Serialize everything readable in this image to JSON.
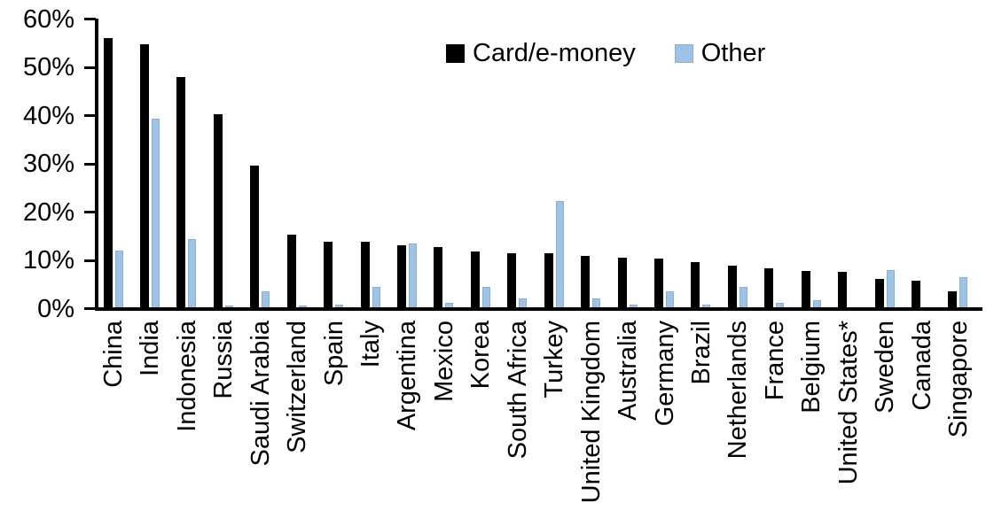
{
  "chart_data": {
    "type": "bar",
    "title": "",
    "xlabel": "",
    "ylabel": "",
    "grid": false,
    "legend_position": "top-center",
    "categories": [
      "China",
      "India",
      "Indonesia",
      "Russia",
      "Saudi Arabia",
      "Switzerland",
      "Spain",
      "Italy",
      "Argentina",
      "Mexico",
      "Korea",
      "South Africa",
      "Turkey",
      "United Kingdom",
      "Australia",
      "Germany",
      "Brazil",
      "Netherlands",
      "France",
      "Belgium",
      "United States*",
      "Sweden",
      "Canada",
      "Singapore"
    ],
    "series": [
      {
        "name": "Card/e-money",
        "color": "#000000",
        "values": [
          56.3,
          55.0,
          48.3,
          40.5,
          29.9,
          15.6,
          14.2,
          14.1,
          13.4,
          13.0,
          12.2,
          11.8,
          11.7,
          11.2,
          10.9,
          10.6,
          10.0,
          9.2,
          8.7,
          8.1,
          7.9,
          6.5,
          6.0,
          3.9
        ]
      },
      {
        "name": "Other",
        "color": "#9DC3E6",
        "values": [
          12.3,
          39.7,
          14.6,
          1.0,
          3.9,
          1.0,
          1.1,
          4.8,
          13.8,
          1.4,
          4.7,
          2.4,
          22.5,
          2.4,
          1.2,
          3.9,
          1.2,
          4.8,
          1.5,
          2.0,
          0.3,
          8.2,
          0.0,
          6.8
        ]
      }
    ],
    "y_axis": {
      "min": 0,
      "max": 60,
      "tick_step": 10,
      "ticks": [
        {
          "label": "60%",
          "value": 60
        },
        {
          "label": "50%",
          "value": 50
        },
        {
          "label": "40%",
          "value": 40
        },
        {
          "label": "30%",
          "value": 30
        },
        {
          "label": "20%",
          "value": 20
        },
        {
          "label": "10%",
          "value": 10
        },
        {
          "label": "0%",
          "value": 0
        }
      ]
    }
  }
}
